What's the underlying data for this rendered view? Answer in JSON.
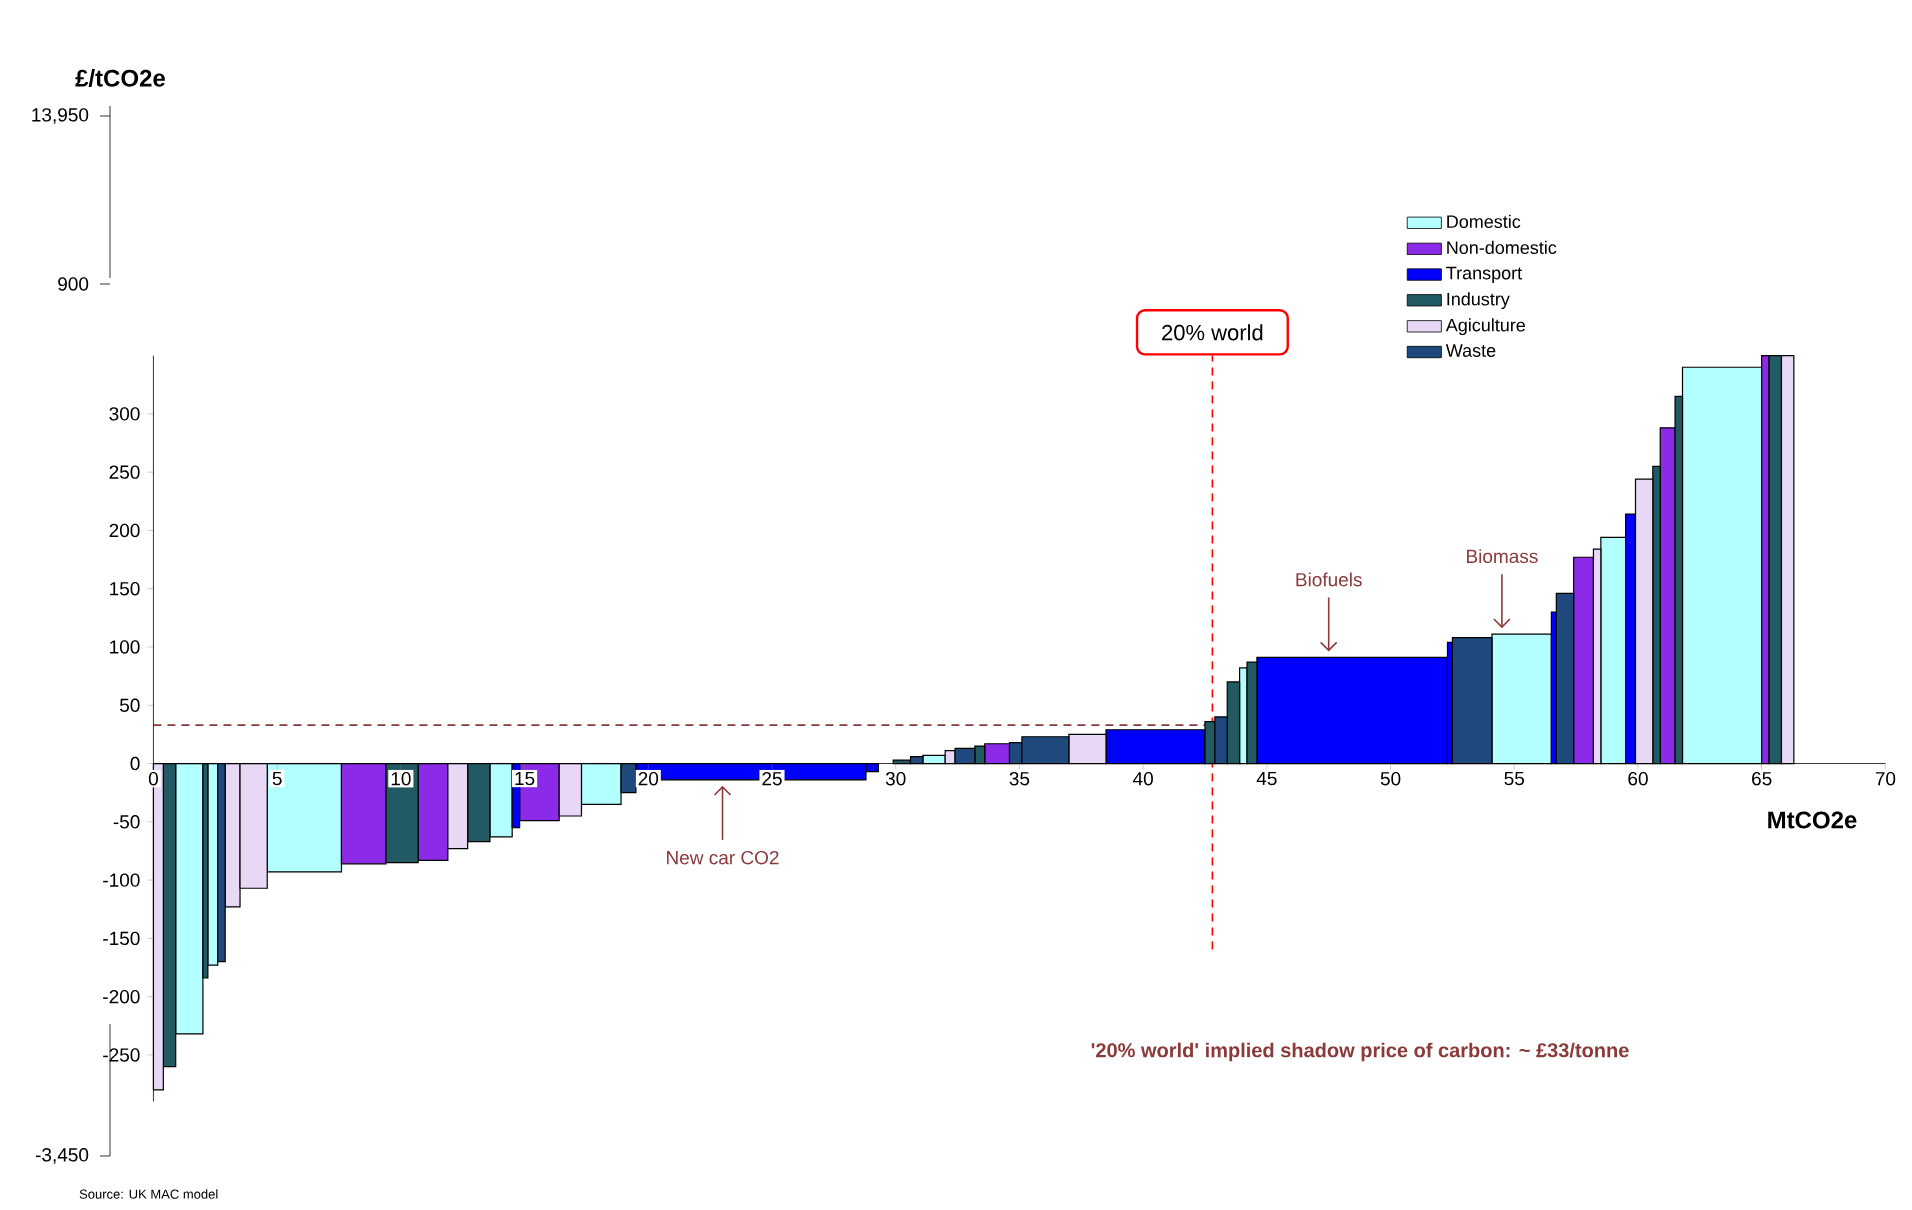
{
  "chart_data": {
    "type": "histogram",
    "xlabel": "MtCO2e",
    "bins": [
      0,
      0.4,
      0.9,
      2.0,
      2.2,
      2.6,
      2.9,
      3.5,
      4.6,
      7.6,
      9.4,
      10.7,
      11.9,
      12.7,
      13.6,
      14.5,
      14.8,
      16.4,
      17.3,
      18.9,
      19.5,
      28.8,
      29.3,
      29.9,
      30.6,
      31.1,
      32.0,
      32.4,
      33.2,
      33.6,
      34.6,
      35.1,
      37.0,
      38.5,
      42.5,
      42.9,
      43.4,
      43.9,
      44.2,
      44.6,
      52.3,
      52.5,
      54.1,
      56.5,
      56.7,
      57.4,
      58.2,
      58.5,
      59.5,
      59.9,
      60.6,
      60.9,
      61.5,
      61.8,
      65.0,
      65.3,
      65.8,
      66.3
    ],
    "series": [
      {
        "name": "Domestic",
        "color": "#b3ffff",
        "values": [
          null,
          null,
          -232,
          null,
          -173,
          null,
          null,
          null,
          -93,
          null,
          null,
          null,
          null,
          null,
          -63,
          null,
          null,
          null,
          -35,
          null,
          null,
          null,
          null,
          null,
          null,
          7,
          null,
          null,
          null,
          null,
          null,
          null,
          null,
          null,
          null,
          null,
          null,
          82,
          null,
          null,
          null,
          null,
          111,
          null,
          null,
          null,
          null,
          194,
          null,
          null,
          null,
          null,
          null,
          340,
          null,
          null,
          null
        ]
      },
      {
        "name": "Non-domestic",
        "color": "#8b2be8",
        "values": [
          null,
          null,
          null,
          null,
          null,
          null,
          null,
          null,
          null,
          -86,
          null,
          -83,
          null,
          null,
          null,
          null,
          -49,
          null,
          null,
          null,
          null,
          null,
          null,
          null,
          null,
          null,
          null,
          null,
          null,
          17,
          null,
          null,
          null,
          null,
          null,
          null,
          null,
          null,
          null,
          null,
          null,
          null,
          null,
          null,
          null,
          177,
          null,
          null,
          null,
          null,
          null,
          288,
          null,
          null,
          350,
          null,
          null
        ]
      },
      {
        "name": "Transport",
        "color": "#0000ff",
        "values": [
          null,
          null,
          null,
          null,
          null,
          null,
          null,
          null,
          null,
          null,
          null,
          null,
          null,
          null,
          null,
          -55,
          null,
          null,
          null,
          null,
          -14,
          -7,
          null,
          null,
          null,
          null,
          null,
          null,
          null,
          null,
          null,
          null,
          null,
          29,
          null,
          null,
          null,
          null,
          null,
          91,
          104,
          null,
          null,
          130,
          null,
          null,
          null,
          null,
          214,
          null,
          null,
          null,
          null,
          null,
          null,
          null,
          null
        ]
      },
      {
        "name": "Industry",
        "color": "#215a63",
        "values": [
          null,
          -260,
          null,
          -184,
          null,
          null,
          null,
          null,
          null,
          null,
          -85,
          null,
          null,
          -67,
          null,
          null,
          null,
          null,
          null,
          null,
          null,
          null,
          null,
          3,
          null,
          null,
          null,
          null,
          15,
          null,
          null,
          null,
          null,
          null,
          36,
          null,
          70,
          null,
          87,
          null,
          null,
          null,
          null,
          null,
          null,
          null,
          null,
          null,
          null,
          null,
          255,
          null,
          315,
          null,
          null,
          350,
          null
        ]
      },
      {
        "name": "Agiculture",
        "color": "#e8d8f5",
        "values": [
          -280,
          null,
          null,
          null,
          null,
          null,
          -123,
          -107,
          null,
          null,
          null,
          null,
          -73,
          null,
          null,
          null,
          null,
          -45,
          null,
          null,
          null,
          null,
          null,
          null,
          null,
          null,
          11,
          null,
          null,
          null,
          null,
          null,
          25,
          null,
          null,
          null,
          null,
          null,
          null,
          null,
          null,
          null,
          null,
          null,
          null,
          null,
          184,
          null,
          null,
          244,
          null,
          null,
          null,
          null,
          null,
          null,
          350
        ]
      },
      {
        "name": "Waste",
        "color": "#1f497d",
        "values": [
          null,
          null,
          null,
          null,
          null,
          -170,
          null,
          null,
          null,
          null,
          null,
          null,
          null,
          null,
          null,
          null,
          null,
          null,
          null,
          -25,
          null,
          null,
          null,
          null,
          6,
          null,
          null,
          13,
          null,
          null,
          18,
          23,
          null,
          null,
          null,
          40,
          null,
          null,
          null,
          null,
          null,
          108,
          null,
          null,
          146,
          null,
          null,
          null,
          null,
          null,
          null,
          null,
          null,
          null,
          null,
          null,
          null
        ]
      }
    ],
    "xlim": [
      0,
      70
    ],
    "xticks": [
      0,
      5,
      10,
      15,
      20,
      25,
      30,
      35,
      40,
      45,
      50,
      55,
      60,
      65,
      70
    ],
    "ylim": [
      -290,
      350
    ],
    "yticks": [
      -250,
      -200,
      -150,
      -100,
      -50,
      0,
      50,
      100,
      150,
      200,
      250,
      300
    ],
    "legend": "top right",
    "ref_lines": [
      {
        "axis": "x",
        "value": 42.8,
        "label": "20% world",
        "color": "#ff0000",
        "line_style": "dashed"
      },
      {
        "axis": "y",
        "value": 33,
        "color": "#8b3a3a",
        "line_style": "dashed"
      }
    ],
    "annotations": [
      "'20% world' implied shadow price of carbon: ~ £33/tonne",
      "Source:  UK MAC model",
      "13,950",
      "900",
      "-3,450",
      {
        "text": "Biofuels",
        "x": 47.5,
        "y": 91
      },
      {
        "text": "Biomass",
        "x": 54.5,
        "y": 111
      },
      {
        "text": "New car CO2",
        "x": 23,
        "y": -14
      },
      "£/tCO2e"
    ]
  }
}
